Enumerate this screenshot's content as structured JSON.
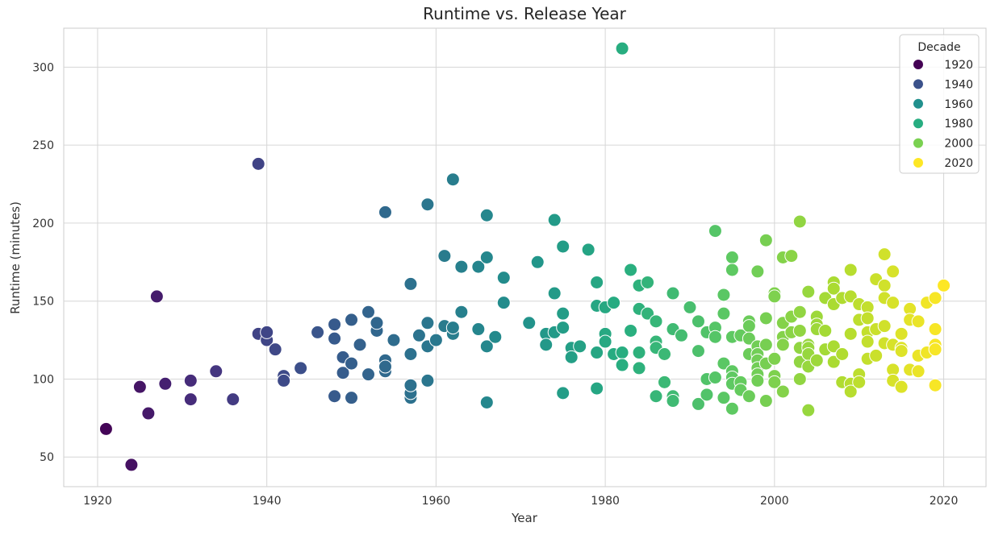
{
  "chart_data": {
    "type": "scatter",
    "title": "Runtime vs. Release Year",
    "xlabel": "Year",
    "ylabel": "Runtime (minutes)",
    "xlim": [
      1916,
      2025
    ],
    "ylim": [
      31,
      325
    ],
    "xticks": [
      1920,
      1940,
      1960,
      1980,
      2000,
      2020
    ],
    "yticks": [
      50,
      100,
      150,
      200,
      250,
      300
    ],
    "grid": true,
    "legend": {
      "title": "Decade",
      "placement": "top-right",
      "entries": [
        {
          "label": "1920",
          "color": "#440154"
        },
        {
          "label": "1940",
          "color": "#3b528b"
        },
        {
          "label": "1960",
          "color": "#21908d"
        },
        {
          "label": "1980",
          "color": "#27ad81"
        },
        {
          "label": "2000",
          "color": "#7ad151"
        },
        {
          "label": "2020",
          "color": "#fde725"
        }
      ]
    },
    "colormap": "viridis",
    "color_range": [
      1920,
      2020
    ],
    "points": [
      [
        1921,
        68
      ],
      [
        1924,
        45
      ],
      [
        1925,
        95
      ],
      [
        1926,
        78
      ],
      [
        1927,
        153
      ],
      [
        1928,
        97
      ],
      [
        1931,
        87
      ],
      [
        1931,
        99
      ],
      [
        1934,
        105
      ],
      [
        1936,
        87
      ],
      [
        1939,
        238
      ],
      [
        1939,
        129
      ],
      [
        1940,
        125
      ],
      [
        1940,
        130
      ],
      [
        1941,
        119
      ],
      [
        1942,
        102
      ],
      [
        1942,
        99
      ],
      [
        1944,
        107
      ],
      [
        1946,
        130
      ],
      [
        1948,
        89
      ],
      [
        1948,
        126
      ],
      [
        1948,
        135
      ],
      [
        1949,
        104
      ],
      [
        1949,
        114
      ],
      [
        1950,
        88
      ],
      [
        1950,
        110
      ],
      [
        1950,
        138
      ],
      [
        1951,
        122
      ],
      [
        1952,
        103
      ],
      [
        1952,
        143
      ],
      [
        1953,
        131
      ],
      [
        1953,
        136
      ],
      [
        1954,
        207
      ],
      [
        1954,
        105
      ],
      [
        1954,
        112
      ],
      [
        1954,
        108
      ],
      [
        1955,
        125
      ],
      [
        1957,
        161
      ],
      [
        1957,
        116
      ],
      [
        1957,
        88
      ],
      [
        1957,
        91
      ],
      [
        1957,
        96
      ],
      [
        1958,
        128
      ],
      [
        1959,
        212
      ],
      [
        1959,
        136
      ],
      [
        1959,
        121
      ],
      [
        1959,
        99
      ],
      [
        1960,
        125
      ],
      [
        1961,
        179
      ],
      [
        1961,
        134
      ],
      [
        1962,
        228
      ],
      [
        1962,
        129
      ],
      [
        1962,
        133
      ],
      [
        1963,
        172
      ],
      [
        1963,
        143
      ],
      [
        1965,
        172
      ],
      [
        1965,
        132
      ],
      [
        1966,
        205
      ],
      [
        1966,
        178
      ],
      [
        1966,
        121
      ],
      [
        1966,
        85
      ],
      [
        1967,
        127
      ],
      [
        1968,
        165
      ],
      [
        1968,
        149
      ],
      [
        1971,
        136
      ],
      [
        1972,
        175
      ],
      [
        1973,
        129
      ],
      [
        1973,
        122
      ],
      [
        1974,
        202
      ],
      [
        1974,
        155
      ],
      [
        1974,
        130
      ],
      [
        1975,
        185
      ],
      [
        1975,
        142
      ],
      [
        1975,
        133
      ],
      [
        1975,
        91
      ],
      [
        1976,
        120
      ],
      [
        1976,
        114
      ],
      [
        1977,
        121
      ],
      [
        1978,
        183
      ],
      [
        1979,
        162
      ],
      [
        1979,
        147
      ],
      [
        1979,
        117
      ],
      [
        1979,
        94
      ],
      [
        1980,
        146
      ],
      [
        1980,
        129
      ],
      [
        1980,
        124
      ],
      [
        1981,
        149
      ],
      [
        1981,
        116
      ],
      [
        1982,
        312
      ],
      [
        1982,
        117
      ],
      [
        1982,
        109
      ],
      [
        1983,
        170
      ],
      [
        1983,
        131
      ],
      [
        1984,
        160
      ],
      [
        1984,
        145
      ],
      [
        1984,
        117
      ],
      [
        1984,
        107
      ],
      [
        1985,
        162
      ],
      [
        1985,
        142
      ],
      [
        1986,
        137
      ],
      [
        1986,
        124
      ],
      [
        1986,
        120
      ],
      [
        1986,
        89
      ],
      [
        1987,
        116
      ],
      [
        1987,
        98
      ],
      [
        1988,
        155
      ],
      [
        1988,
        132
      ],
      [
        1988,
        89
      ],
      [
        1988,
        86
      ],
      [
        1989,
        128
      ],
      [
        1990,
        146
      ],
      [
        1991,
        137
      ],
      [
        1991,
        118
      ],
      [
        1991,
        84
      ],
      [
        1992,
        130
      ],
      [
        1992,
        100
      ],
      [
        1992,
        90
      ],
      [
        1993,
        195
      ],
      [
        1993,
        133
      ],
      [
        1993,
        127
      ],
      [
        1993,
        101
      ],
      [
        1994,
        154
      ],
      [
        1994,
        142
      ],
      [
        1994,
        110
      ],
      [
        1994,
        88
      ],
      [
        1995,
        178
      ],
      [
        1995,
        170
      ],
      [
        1995,
        127
      ],
      [
        1995,
        105
      ],
      [
        1995,
        101
      ],
      [
        1995,
        97
      ],
      [
        1995,
        81
      ],
      [
        1996,
        128
      ],
      [
        1996,
        98
      ],
      [
        1996,
        93
      ],
      [
        1997,
        137
      ],
      [
        1997,
        134
      ],
      [
        1997,
        126
      ],
      [
        1997,
        116
      ],
      [
        1997,
        89
      ],
      [
        1998,
        169
      ],
      [
        1998,
        121
      ],
      [
        1998,
        116
      ],
      [
        1998,
        112
      ],
      [
        1998,
        107
      ],
      [
        1998,
        103
      ],
      [
        1998,
        99
      ],
      [
        1999,
        189
      ],
      [
        1999,
        139
      ],
      [
        1999,
        122
      ],
      [
        1999,
        110
      ],
      [
        1999,
        86
      ],
      [
        2000,
        155
      ],
      [
        2000,
        153
      ],
      [
        2000,
        113
      ],
      [
        2000,
        102
      ],
      [
        2000,
        98
      ],
      [
        2001,
        178
      ],
      [
        2001,
        136
      ],
      [
        2001,
        127
      ],
      [
        2001,
        122
      ],
      [
        2001,
        92
      ],
      [
        2002,
        179
      ],
      [
        2002,
        140
      ],
      [
        2002,
        130
      ],
      [
        2003,
        201
      ],
      [
        2003,
        143
      ],
      [
        2003,
        131
      ],
      [
        2003,
        120
      ],
      [
        2003,
        111
      ],
      [
        2003,
        100
      ],
      [
        2004,
        156
      ],
      [
        2004,
        122
      ],
      [
        2004,
        120
      ],
      [
        2004,
        116
      ],
      [
        2004,
        108
      ],
      [
        2004,
        80
      ],
      [
        2005,
        140
      ],
      [
        2005,
        135
      ],
      [
        2005,
        132
      ],
      [
        2005,
        112
      ],
      [
        2006,
        152
      ],
      [
        2006,
        131
      ],
      [
        2006,
        119
      ],
      [
        2007,
        162
      ],
      [
        2007,
        158
      ],
      [
        2007,
        148
      ],
      [
        2007,
        121
      ],
      [
        2007,
        111
      ],
      [
        2008,
        152
      ],
      [
        2008,
        116
      ],
      [
        2008,
        98
      ],
      [
        2009,
        170
      ],
      [
        2009,
        153
      ],
      [
        2009,
        129
      ],
      [
        2009,
        97
      ],
      [
        2009,
        92
      ],
      [
        2010,
        148
      ],
      [
        2010,
        138
      ],
      [
        2010,
        103
      ],
      [
        2010,
        98
      ],
      [
        2011,
        146
      ],
      [
        2011,
        139
      ],
      [
        2011,
        130
      ],
      [
        2011,
        124
      ],
      [
        2011,
        113
      ],
      [
        2012,
        164
      ],
      [
        2012,
        132
      ],
      [
        2012,
        115
      ],
      [
        2013,
        180
      ],
      [
        2013,
        160
      ],
      [
        2013,
        152
      ],
      [
        2013,
        134
      ],
      [
        2013,
        123
      ],
      [
        2014,
        169
      ],
      [
        2014,
        149
      ],
      [
        2014,
        122
      ],
      [
        2014,
        106
      ],
      [
        2014,
        99
      ],
      [
        2015,
        129
      ],
      [
        2015,
        120
      ],
      [
        2015,
        118
      ],
      [
        2015,
        95
      ],
      [
        2016,
        145
      ],
      [
        2016,
        138
      ],
      [
        2016,
        106
      ],
      [
        2017,
        137
      ],
      [
        2017,
        115
      ],
      [
        2017,
        105
      ],
      [
        2018,
        149
      ],
      [
        2018,
        117
      ],
      [
        2019,
        152
      ],
      [
        2019,
        132
      ],
      [
        2019,
        122
      ],
      [
        2019,
        119
      ],
      [
        2019,
        96
      ],
      [
        2020,
        160
      ]
    ]
  }
}
